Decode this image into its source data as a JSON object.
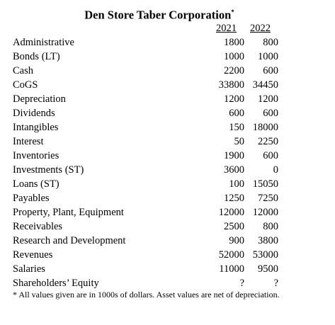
{
  "header": {
    "title": "Den Store Taber Corporation",
    "title_marker": "*"
  },
  "table": {
    "columns": [
      "2021",
      "2022"
    ],
    "rows": [
      [
        "Administrative",
        1800,
        800
      ],
      [
        "Bonds (LT)",
        1000,
        1000
      ],
      [
        "Cash",
        2200,
        600
      ],
      [
        "CoGS",
        33800,
        34450
      ],
      [
        "Depreciation",
        1200,
        1200
      ],
      [
        "Dividends",
        600,
        600
      ],
      [
        "Intangibles",
        150,
        18000
      ],
      [
        "Interest",
        50,
        2250
      ],
      [
        "Inventories",
        1900,
        600
      ],
      [
        "Investments (ST)",
        3600,
        0
      ],
      [
        "Loans (ST)",
        100,
        15050
      ],
      [
        "Payables",
        1250,
        7250
      ],
      [
        "Property, Plant, Equipment",
        12000,
        12000
      ],
      [
        "Receivables",
        2500,
        800
      ],
      [
        "Research and Development",
        900,
        3800
      ],
      [
        "Revenues",
        52000,
        53000
      ],
      [
        "Salaries",
        11000,
        9500
      ],
      [
        "Shareholders’ Equity",
        "?",
        "?"
      ]
    ]
  },
  "footnote": "* All values given are in 1000s of dollars.  Asset values are net of depreciation."
}
